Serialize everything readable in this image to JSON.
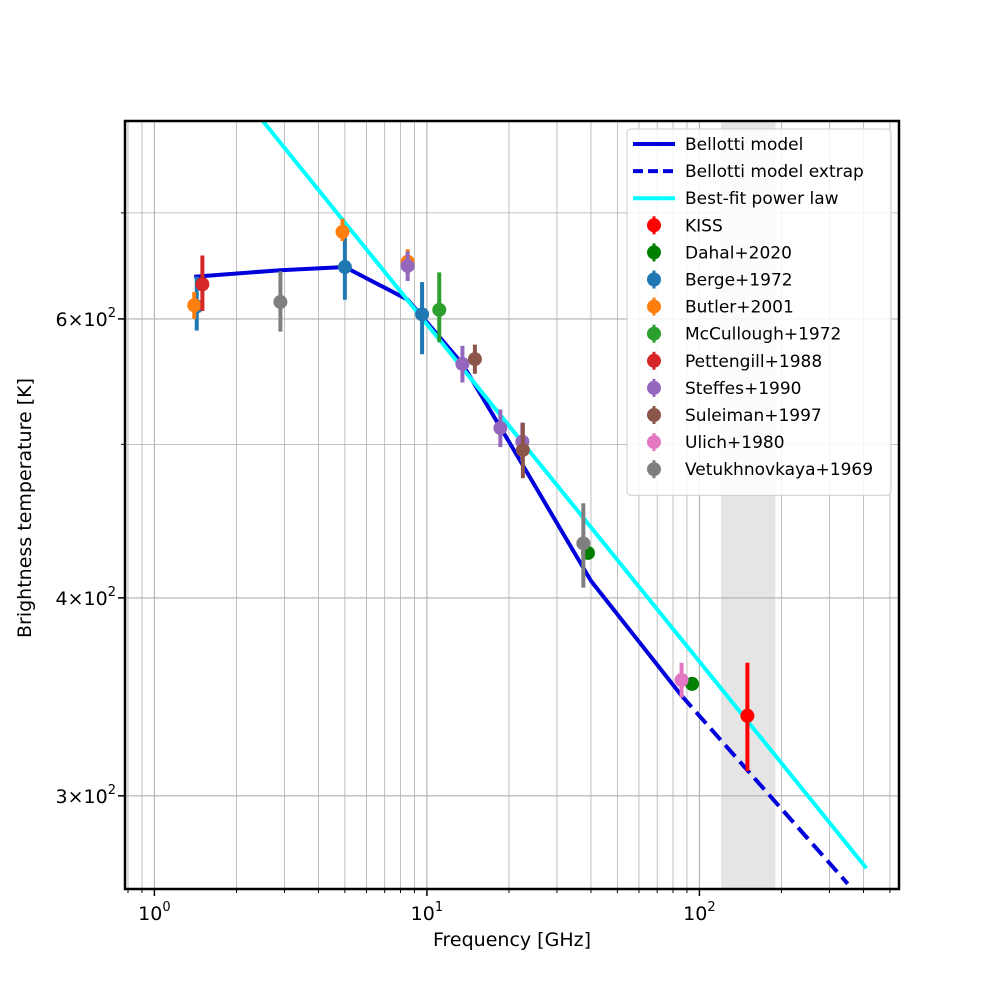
{
  "chart_data": {
    "type": "scatter",
    "title": "",
    "xlabel": "Frequency [GHz]",
    "ylabel": "Brightness temperature [K]",
    "xscale": "log",
    "yscale": "log",
    "xlim": [
      0.78,
      540
    ],
    "ylim": [
      262,
      800
    ],
    "grid": true,
    "legend_position": "top-right",
    "x_major_ticks": [
      {
        "value": 1,
        "base": "10",
        "exp": "0"
      },
      {
        "value": 10,
        "base": "10",
        "exp": "1"
      },
      {
        "value": 100,
        "base": "10",
        "exp": "2"
      }
    ],
    "y_major_ticks": [
      {
        "value": 300,
        "mant": "3",
        "base": "10",
        "exp": "2"
      },
      {
        "value": 400,
        "mant": "4",
        "base": "10",
        "exp": "2"
      },
      {
        "value": 600,
        "mant": "6",
        "base": "10",
        "exp": "2"
      }
    ],
    "y_minor_ticks": [
      500,
      700
    ],
    "shaded_band": {
      "x": [
        120,
        190
      ],
      "color": "#e5e5e5"
    },
    "lines": [
      {
        "name": "Bellotti model",
        "color": "#0000dd",
        "style": "solid",
        "points": [
          [
            1.4,
            638
          ],
          [
            2.9,
            644
          ],
          [
            5.0,
            647
          ],
          [
            8.5,
            617
          ],
          [
            13.5,
            562
          ],
          [
            20.0,
            502
          ],
          [
            40.0,
            410
          ],
          [
            86.0,
            347
          ]
        ]
      },
      {
        "name": "Bellotti model extrap",
        "color": "#0000dd",
        "style": "dashed",
        "points": [
          [
            86.0,
            347
          ],
          [
            350.0,
            264
          ]
        ]
      },
      {
        "name": "Best-fit power law",
        "color": "#00ffff",
        "style": "solid",
        "points": [
          [
            2.5,
            800
          ],
          [
            410.0,
            270
          ]
        ]
      }
    ],
    "series": [
      {
        "name": "KISS",
        "color": "#ff0000",
        "points": [
          {
            "x": 150,
            "y": 337,
            "lo": 311,
            "hi": 364
          }
        ]
      },
      {
        "name": "Dahal+2020",
        "color": "#008000",
        "points": [
          {
            "x": 39,
            "y": 427,
            "lo": 427,
            "hi": 427
          },
          {
            "x": 94,
            "y": 353,
            "lo": 353,
            "hi": 353
          }
        ]
      },
      {
        "name": "Berge+1972",
        "color": "#1f77b4",
        "points": [
          {
            "x": 1.43,
            "y": 611,
            "lo": 590,
            "hi": 638
          },
          {
            "x": 5.0,
            "y": 647,
            "lo": 617,
            "hi": 678
          },
          {
            "x": 9.6,
            "y": 604,
            "lo": 570,
            "hi": 633
          }
        ]
      },
      {
        "name": "Butler+2001",
        "color": "#ff7f0e",
        "points": [
          {
            "x": 1.4,
            "y": 612,
            "lo": 600,
            "hi": 624
          },
          {
            "x": 4.9,
            "y": 681,
            "lo": 672,
            "hi": 694
          },
          {
            "x": 8.5,
            "y": 652,
            "lo": 640,
            "hi": 664
          }
        ]
      },
      {
        "name": "McCullough+1972",
        "color": "#2ca02c",
        "points": [
          {
            "x": 11.1,
            "y": 608,
            "lo": 580,
            "hi": 642
          }
        ]
      },
      {
        "name": "Pettengill+1988",
        "color": "#d62728",
        "points": [
          {
            "x": 1.5,
            "y": 631,
            "lo": 607,
            "hi": 658
          }
        ]
      },
      {
        "name": "Steffes+1990",
        "color": "#9467bd",
        "points": [
          {
            "x": 8.5,
            "y": 648,
            "lo": 634,
            "hi": 662
          },
          {
            "x": 13.5,
            "y": 562,
            "lo": 547,
            "hi": 577
          },
          {
            "x": 18.6,
            "y": 512,
            "lo": 498,
            "hi": 526
          },
          {
            "x": 22.4,
            "y": 502,
            "lo": 488,
            "hi": 516
          }
        ]
      },
      {
        "name": "Suleiman+1997",
        "color": "#8c564b",
        "points": [
          {
            "x": 15.0,
            "y": 566,
            "lo": 554,
            "hi": 578
          },
          {
            "x": 22.5,
            "y": 496,
            "lo": 476,
            "hi": 516
          }
        ]
      },
      {
        "name": "Ulich+1980",
        "color": "#e377c2",
        "points": [
          {
            "x": 86,
            "y": 355,
            "lo": 346,
            "hi": 364
          }
        ]
      },
      {
        "name": "Vetukhnovkaya+1969",
        "color": "#7f7f7f",
        "points": [
          {
            "x": 2.9,
            "y": 615,
            "lo": 589,
            "hi": 643
          },
          {
            "x": 37.5,
            "y": 433,
            "lo": 406,
            "hi": 459
          }
        ]
      }
    ]
  }
}
